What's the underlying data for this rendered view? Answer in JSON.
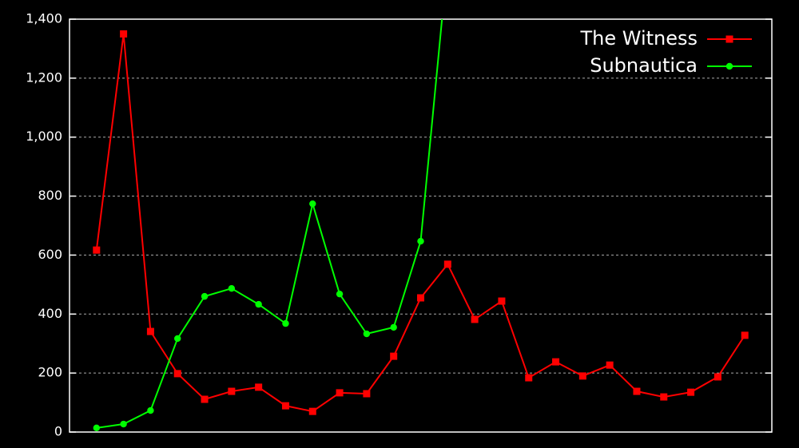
{
  "chart_data": {
    "type": "line",
    "categories": [
      null,
      null,
      null,
      null,
      null,
      null,
      null,
      null,
      null,
      null,
      null,
      null,
      null,
      null,
      null,
      null,
      null,
      null,
      null,
      null,
      null,
      null,
      null,
      null,
      null
    ],
    "series": [
      {
        "name": "The Witness",
        "color": "#ff0000",
        "marker": "square",
        "values": [
          617,
          1350,
          341,
          198,
          111,
          138,
          152,
          89,
          70,
          133,
          130,
          257,
          455,
          569,
          382,
          444,
          184,
          238,
          190,
          227,
          138,
          119,
          135,
          187,
          328
        ]
      },
      {
        "name": "Subnautica",
        "color": "#00ff00",
        "marker": "circle",
        "values": [
          14,
          27,
          73,
          317,
          460,
          487,
          433,
          368,
          774,
          468,
          333,
          355,
          647,
          1600,
          null,
          null,
          null,
          null,
          null,
          null,
          null,
          null,
          null,
          null,
          null
        ]
      }
    ],
    "ylim": [
      0,
      1400
    ],
    "yticks": [
      0,
      200,
      400,
      600,
      800,
      {
        "value": 1000,
        "label": "1,000"
      },
      {
        "value": 1200,
        "label": "1,200"
      },
      {
        "value": 1400,
        "label": "1,400"
      }
    ],
    "grid": true,
    "legend": "top-right"
  }
}
